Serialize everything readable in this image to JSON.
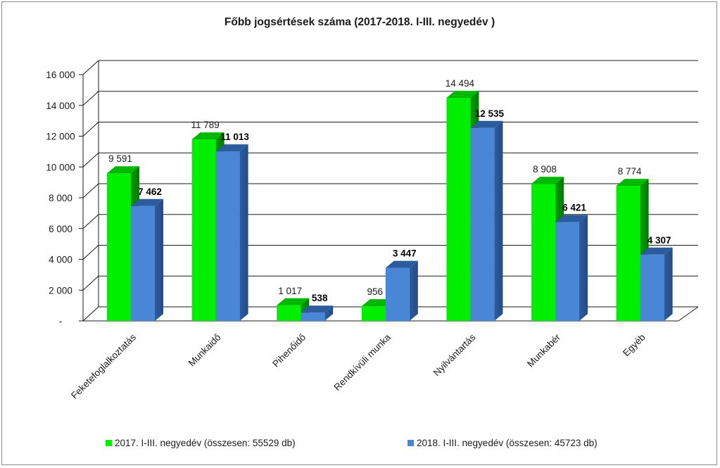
{
  "chart_data": {
    "type": "bar",
    "title": "Főbb jogsértések száma (2017-2018. I-III. negyedév )",
    "categories": [
      "Feketefoglalkoztatás",
      "Munkaidő",
      "Pihenőidő",
      "Rendkívüli munka",
      "Nyilvántartás",
      "Munkabér",
      "Egyéb"
    ],
    "series": [
      {
        "name": "2017. I-III. negyedév (összesen: 55529 db)",
        "values": [
          9591,
          11789,
          1017,
          956,
          14494,
          8908,
          8774
        ],
        "value_labels": [
          "9 591",
          "11 789",
          "1 017",
          "956",
          "14 494",
          "8 908",
          "8 774"
        ],
        "color": "#00ee00"
      },
      {
        "name": "2018. I-III. negyedév (összesen: 45723 db)",
        "values": [
          7462,
          11013,
          538,
          3447,
          12535,
          6421,
          4307
        ],
        "value_labels": [
          "7 462",
          "11 013",
          "538",
          "3 447",
          "12 535",
          "6 421",
          "4 307"
        ],
        "color": "#4a86d6"
      }
    ],
    "ylim": [
      0,
      16000
    ],
    "yticks": [
      0,
      2000,
      4000,
      6000,
      8000,
      10000,
      12000,
      14000,
      16000
    ],
    "ytick_labels": [
      "-",
      "2 000",
      "4 000",
      "6 000",
      "8 000",
      "10 000",
      "12 000",
      "14 000",
      "16 000"
    ],
    "xlabel": "",
    "ylabel": "",
    "grid": true,
    "legend_position": "bottom",
    "style": "3d-clustered-column"
  }
}
